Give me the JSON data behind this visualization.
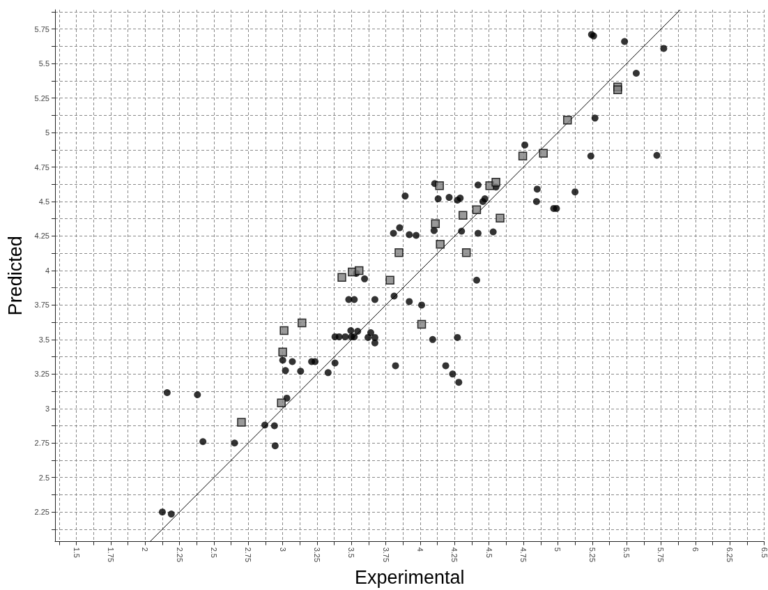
{
  "chart_data": {
    "type": "scatter",
    "xlabel": "Experimental",
    "ylabel": "Predicted",
    "xlim": [
      1.345,
      6.5
    ],
    "ylim": [
      2.035,
      5.89
    ],
    "xticks": [
      1.5,
      1.75,
      2,
      2.25,
      2.5,
      2.75,
      3,
      3.25,
      3.5,
      3.75,
      4,
      4.25,
      4.5,
      4.75,
      5,
      5.25,
      5.5,
      5.75,
      6,
      6.25,
      6.5
    ],
    "yticks": [
      2.25,
      2.5,
      2.75,
      3,
      3.25,
      3.5,
      3.75,
      4,
      4.25,
      4.5,
      4.75,
      5,
      5.25,
      5.5,
      5.75
    ],
    "grid": true,
    "series": [
      {
        "marker": "circle",
        "color": "#000000",
        "x": [
          2.16,
          2.38,
          2.42,
          2.65,
          2.87,
          2.94,
          2.945,
          3.03,
          3.0,
          3.07,
          3.02,
          3.13,
          3.21,
          3.235,
          3.33,
          3.38,
          3.38,
          3.41,
          3.455,
          3.5,
          3.52,
          3.495,
          3.545,
          3.62,
          3.67,
          3.67,
          3.64,
          3.82,
          4.09,
          4.27,
          4.185,
          4.235,
          4.28,
          3.48,
          3.52,
          3.67,
          3.81,
          3.92,
          4.01,
          3.595,
          4.41,
          3.535,
          4.105,
          3.89,
          4.13,
          4.21,
          4.27,
          4.29,
          4.42,
          4.55,
          4.455,
          4.47,
          4.85,
          4.845,
          4.97,
          4.99,
          5.125,
          3.805,
          3.85,
          3.92,
          3.97,
          4.1,
          4.3,
          4.42,
          4.53,
          5.245,
          5.26,
          5.485,
          5.77,
          5.57,
          5.27,
          4.76,
          5.24,
          5.72,
          2.125,
          2.19
        ],
        "values": [
          3.115,
          3.1,
          2.76,
          2.75,
          2.88,
          2.875,
          2.73,
          3.075,
          3.35,
          3.34,
          3.275,
          3.27,
          3.34,
          3.34,
          3.26,
          3.33,
          3.52,
          3.52,
          3.52,
          3.52,
          3.52,
          3.565,
          3.56,
          3.515,
          3.515,
          3.475,
          3.55,
          3.31,
          3.5,
          3.515,
          3.31,
          3.25,
          3.19,
          3.79,
          3.79,
          3.79,
          3.815,
          3.775,
          3.75,
          3.94,
          3.93,
          3.98,
          4.63,
          4.54,
          4.52,
          4.53,
          4.51,
          4.525,
          4.62,
          4.605,
          4.5,
          4.52,
          4.59,
          4.5,
          4.45,
          4.45,
          4.57,
          4.27,
          4.31,
          4.26,
          4.255,
          4.29,
          4.285,
          4.27,
          4.28,
          5.71,
          5.7,
          5.66,
          5.61,
          5.43,
          5.105,
          4.91,
          4.83,
          4.835,
          2.25,
          2.235
        ]
      },
      {
        "marker": "square",
        "color": "#808080",
        "x": [
          2.7,
          2.99,
          3.0,
          3.01,
          3.14,
          3.43,
          3.505,
          3.555,
          3.78,
          4.01,
          3.845,
          4.145,
          4.335,
          4.14,
          4.505,
          4.55,
          4.41,
          4.31,
          4.11,
          4.58,
          5.435,
          5.435,
          5.07,
          4.895,
          4.745
        ],
        "values": [
          2.9,
          3.04,
          3.41,
          3.565,
          3.62,
          3.95,
          3.99,
          4.0,
          3.93,
          3.61,
          4.13,
          4.19,
          4.13,
          4.615,
          4.615,
          4.64,
          4.44,
          4.4,
          4.34,
          4.38,
          5.33,
          5.31,
          5.09,
          4.85,
          4.83
        ]
      },
      {
        "type": "line",
        "marker": "none",
        "line_style": "solid",
        "color": "#000000",
        "x": [
          2.035,
          5.89
        ],
        "values": [
          2.035,
          5.89
        ]
      }
    ]
  }
}
